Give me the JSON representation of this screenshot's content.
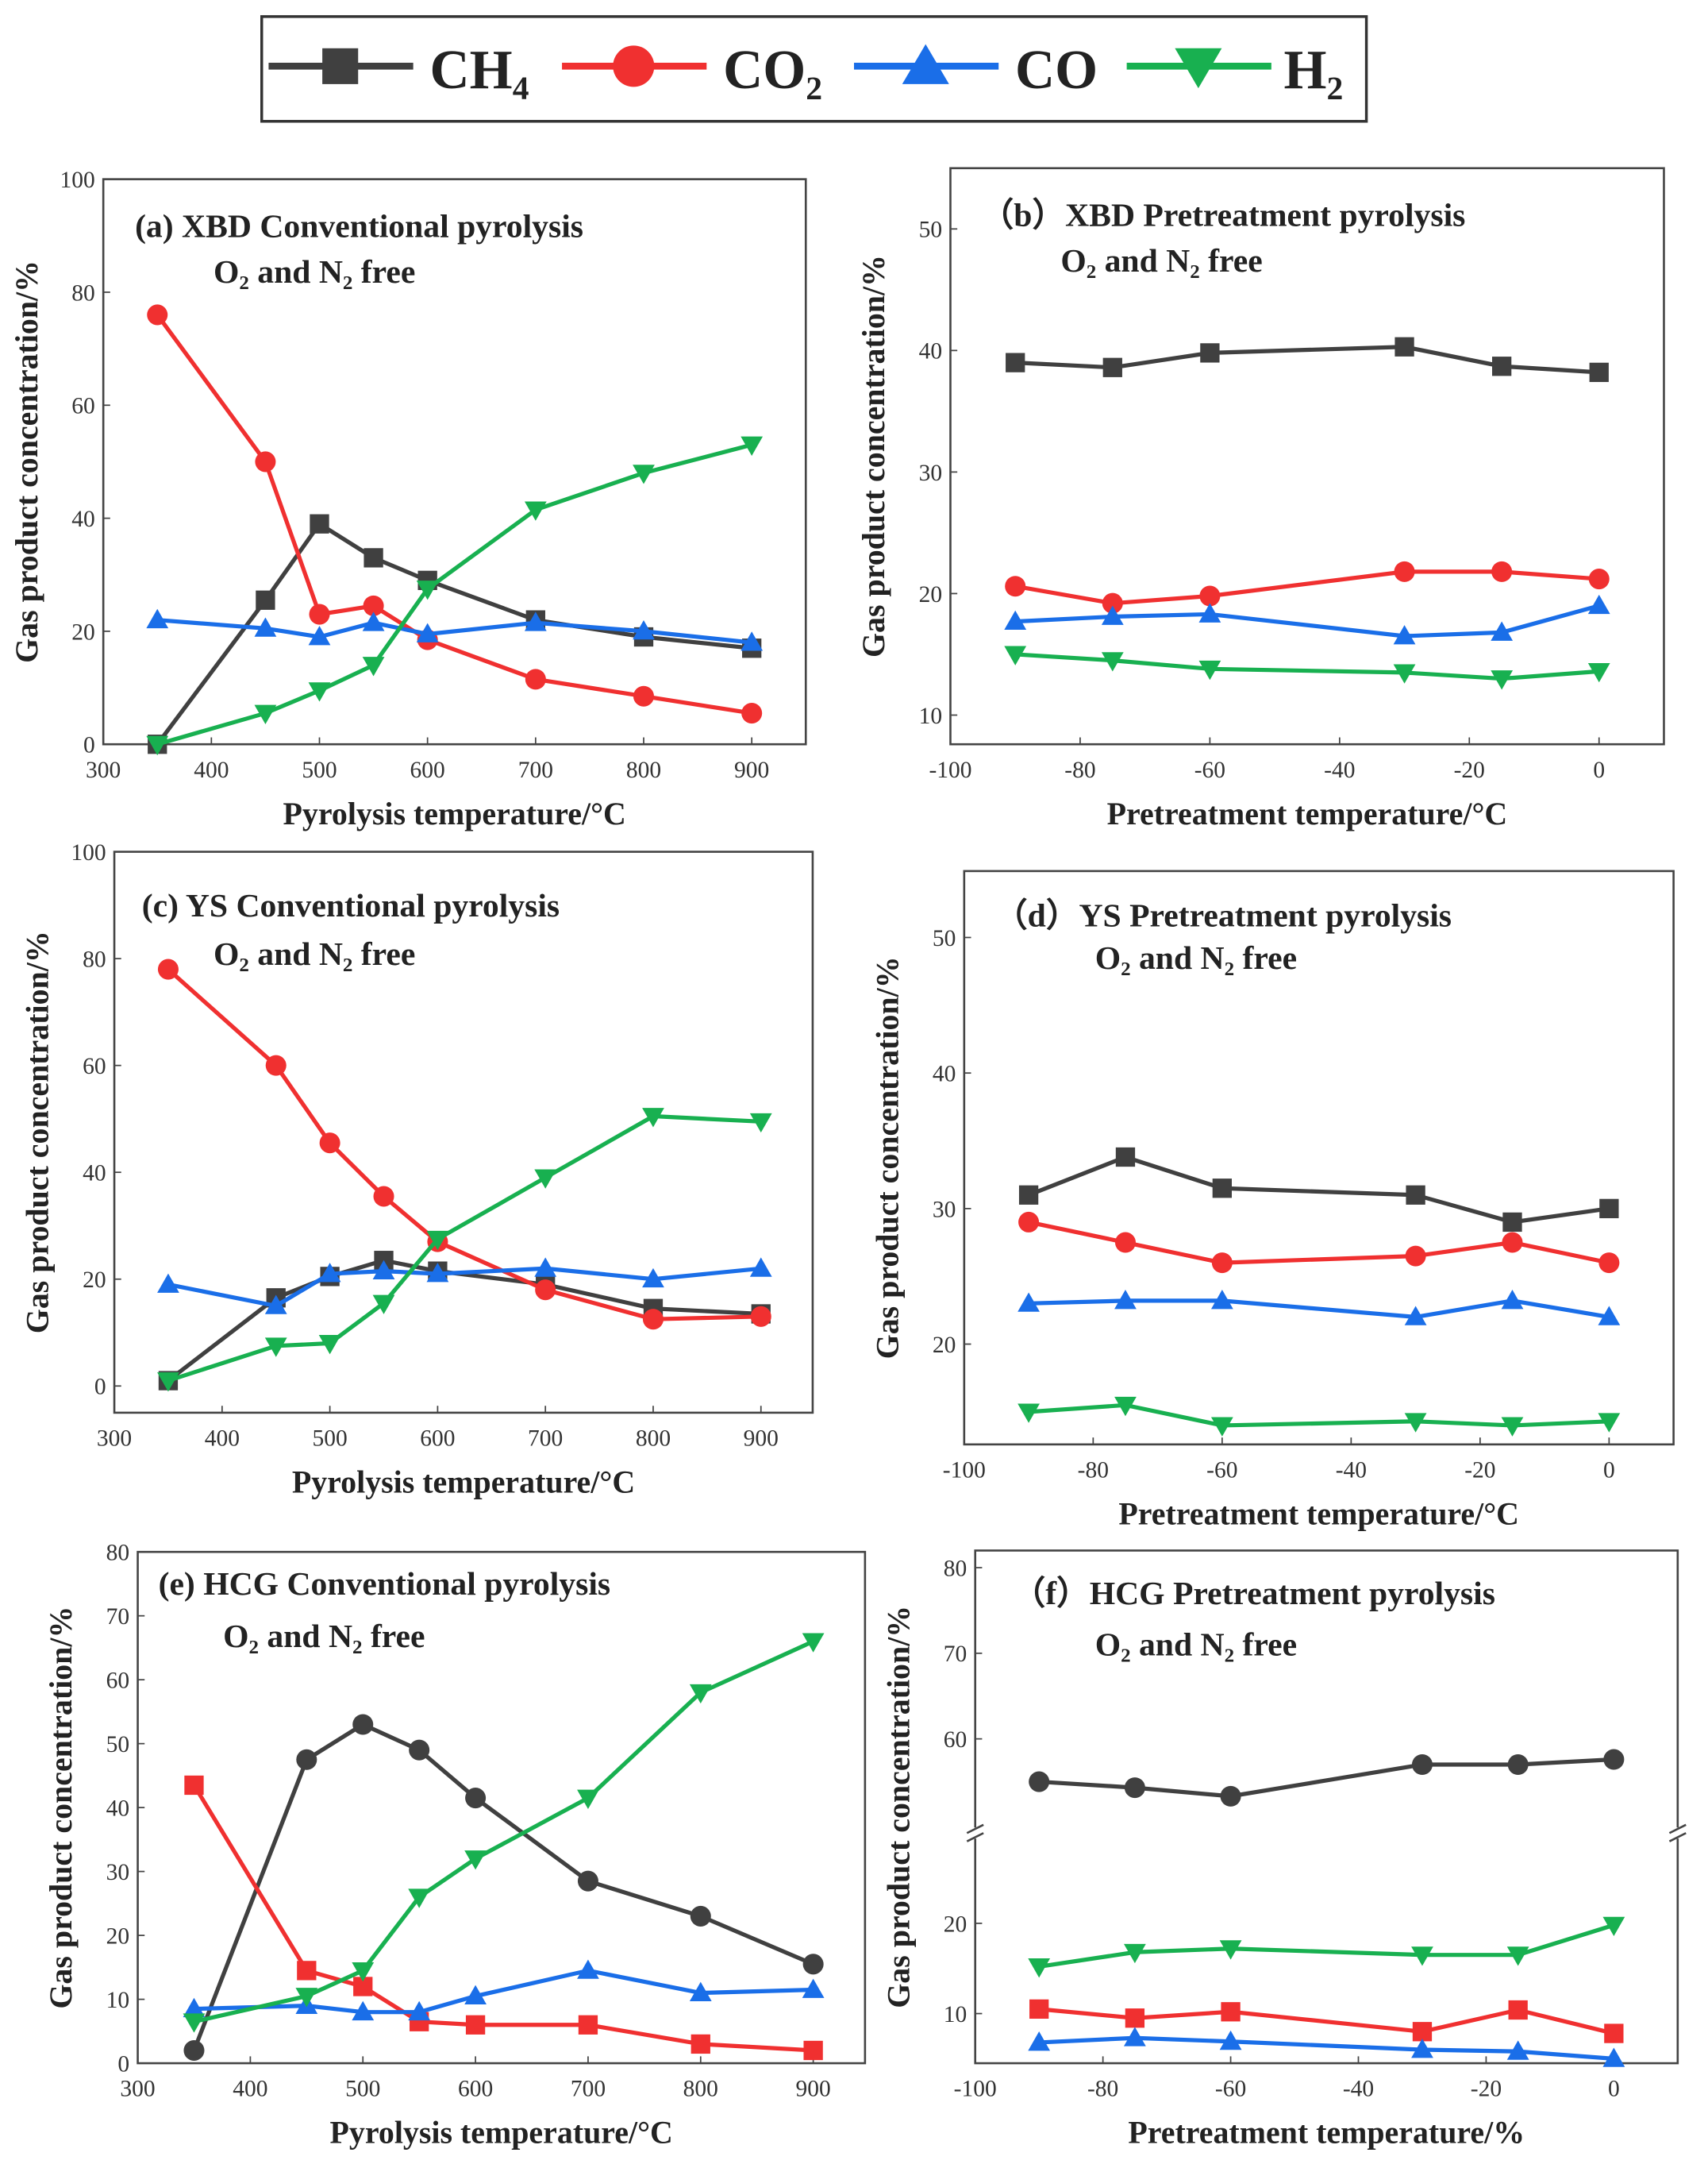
{
  "legend": [
    {
      "name": "CH₄",
      "color": "#404040",
      "marker": "square"
    },
    {
      "name": "CO₂",
      "color": "#f03030",
      "marker": "circle"
    },
    {
      "name": "CO",
      "color": "#1a6ee8",
      "marker": "triangle-up"
    },
    {
      "name": "H₂",
      "color": "#18b050",
      "marker": "triangle-down"
    }
  ],
  "chart_data": [
    {
      "type": "line",
      "title": "(a) XBD Conventional pyrolysis",
      "subtitle": "O₂ and N₂ free",
      "xlabel": "Pyrolysis temperature/°C",
      "ylabel": "Gas product concentration/%",
      "xlim": [
        300,
        950
      ],
      "ylim": [
        0,
        100
      ],
      "xticks": [
        300,
        400,
        500,
        600,
        700,
        800,
        900
      ],
      "yticks": [
        0,
        20,
        40,
        60,
        80,
        100
      ],
      "x": [
        350,
        450,
        500,
        550,
        600,
        700,
        800,
        900
      ],
      "series": [
        {
          "name": "CH₄",
          "color": "#404040",
          "marker": "square",
          "values": [
            0,
            25.5,
            39,
            33,
            29,
            22,
            19,
            17
          ]
        },
        {
          "name": "CO₂",
          "color": "#f03030",
          "marker": "circle",
          "values": [
            76,
            50,
            23,
            24.5,
            18.5,
            11.5,
            8.5,
            5.5
          ]
        },
        {
          "name": "CO",
          "color": "#1a6ee8",
          "marker": "triangle-up",
          "values": [
            22,
            20.5,
            19,
            21.5,
            19.5,
            21.5,
            20,
            18
          ]
        },
        {
          "name": "H₂",
          "color": "#18b050",
          "marker": "triangle-down",
          "values": [
            0,
            5.5,
            9.5,
            14,
            27.5,
            41.5,
            48,
            53
          ]
        }
      ]
    },
    {
      "type": "line",
      "title": "（b）XBD Pretreatment pyrolysis",
      "subtitle": "O₂ and N₂ free",
      "xlabel": "Pretreatment temperature/°C",
      "ylabel": "Gas product concentration/%",
      "xlim": [
        -100,
        10
      ],
      "ylim": [
        7.6,
        55
      ],
      "xticks": [
        -100,
        -80,
        -60,
        -40,
        -20,
        0
      ],
      "yticks": [
        10,
        20,
        30,
        40,
        50
      ],
      "x": [
        -90,
        -75,
        -60,
        -30,
        -15,
        0
      ],
      "series": [
        {
          "name": "CH₄",
          "color": "#404040",
          "marker": "square",
          "values": [
            39,
            38.6,
            39.8,
            40.3,
            38.7,
            38.2
          ]
        },
        {
          "name": "CO₂",
          "color": "#f03030",
          "marker": "circle",
          "values": [
            20.6,
            19.2,
            19.8,
            21.8,
            21.8,
            21.2
          ]
        },
        {
          "name": "CO",
          "color": "#1a6ee8",
          "marker": "triangle-up",
          "values": [
            17.7,
            18.1,
            18.3,
            16.5,
            16.8,
            19
          ]
        },
        {
          "name": "H₂",
          "color": "#18b050",
          "marker": "triangle-down",
          "values": [
            15,
            14.5,
            13.8,
            13.5,
            13,
            13.6
          ]
        }
      ]
    },
    {
      "type": "line",
      "title": "(c) YS Conventional pyrolysis",
      "subtitle": "O₂ and N₂ free",
      "xlabel": "Pyrolysis temperature/°C",
      "ylabel": "Gas product concentration/%",
      "xlim": [
        300,
        948
      ],
      "ylim": [
        -5,
        100
      ],
      "xticks": [
        300,
        400,
        500,
        600,
        700,
        800,
        900
      ],
      "yticks": [
        0,
        20,
        40,
        60,
        80,
        100
      ],
      "x": [
        350,
        450,
        500,
        550,
        600,
        700,
        800,
        900
      ],
      "series": [
        {
          "name": "CH₄",
          "color": "#404040",
          "marker": "square",
          "values": [
            1,
            16.5,
            20.5,
            23.5,
            21.5,
            19,
            14.5,
            13.5
          ]
        },
        {
          "name": "CO₂",
          "color": "#f03030",
          "marker": "circle",
          "values": [
            78,
            60,
            45.5,
            35.5,
            27,
            18,
            12.5,
            13
          ]
        },
        {
          "name": "CO",
          "color": "#1a6ee8",
          "marker": "triangle-up",
          "values": [
            19,
            15,
            21,
            21.5,
            21,
            22,
            20,
            22
          ]
        },
        {
          "name": "H₂",
          "color": "#18b050",
          "marker": "triangle-down",
          "values": [
            1,
            7.5,
            8,
            15.5,
            27.5,
            39,
            50.5,
            49.5
          ]
        }
      ]
    },
    {
      "type": "line",
      "title": "（d）YS Pretreatment pyrolysis",
      "subtitle": "O₂ and N₂ free",
      "xlabel": "Pretreatment temperature/°C",
      "ylabel": "Gas product concentration/%",
      "xlim": [
        -100,
        10
      ],
      "ylim": [
        12.6,
        54.9
      ],
      "xticks": [
        -100,
        -80,
        -60,
        -40,
        -20,
        0
      ],
      "yticks": [
        20,
        30,
        40,
        50
      ],
      "x": [
        -90,
        -75,
        -60,
        -30,
        -15,
        0
      ],
      "series": [
        {
          "name": "CH₄",
          "color": "#404040",
          "marker": "square",
          "values": [
            31,
            33.8,
            31.5,
            31,
            29,
            30
          ]
        },
        {
          "name": "CO₂",
          "color": "#f03030",
          "marker": "circle",
          "values": [
            29,
            27.5,
            26,
            26.5,
            27.5,
            26
          ]
        },
        {
          "name": "CO",
          "color": "#1a6ee8",
          "marker": "triangle-up",
          "values": [
            23,
            23.2,
            23.2,
            22,
            23.2,
            22
          ]
        },
        {
          "name": "H₂",
          "color": "#18b050",
          "marker": "triangle-down",
          "values": [
            15,
            15.5,
            14,
            14.3,
            14,
            14.3
          ]
        }
      ]
    },
    {
      "type": "line",
      "title": "(e) HCG Conventional pyrolysis",
      "subtitle": "O₂ and N₂ free",
      "xlabel": "Pyrolysis temperature/°C",
      "ylabel": "Gas product concentration/%",
      "xlim": [
        300,
        946
      ],
      "ylim": [
        0,
        80
      ],
      "xticks": [
        300,
        400,
        500,
        600,
        700,
        800,
        900
      ],
      "yticks": [
        0,
        10,
        20,
        30,
        40,
        50,
        60,
        70,
        80
      ],
      "x": [
        350,
        450,
        500,
        550,
        600,
        700,
        800,
        900
      ],
      "series": [
        {
          "name": "CH₄",
          "color": "#404040",
          "marker": "circle",
          "values": [
            2,
            47.5,
            53,
            49,
            41.5,
            28.5,
            23,
            15.5
          ]
        },
        {
          "name": "CO₂",
          "color": "#f03030",
          "marker": "square",
          "values": [
            43.5,
            14.5,
            12,
            6.5,
            6,
            6,
            3,
            2
          ]
        },
        {
          "name": "CO",
          "color": "#1a6ee8",
          "marker": "triangle-up",
          "values": [
            8.5,
            9,
            8,
            8,
            10.5,
            14.5,
            11,
            11.5
          ]
        },
        {
          "name": "H₂",
          "color": "#18b050",
          "marker": "triangle-down",
          "values": [
            6.5,
            10.5,
            14.5,
            26,
            32,
            41.5,
            58,
            66
          ]
        }
      ]
    },
    {
      "type": "line",
      "title": "（f）HCG Pretreatment pyrolysis",
      "subtitle": "O₂ and N₂ free",
      "xlabel": "Pretreatment temperature/%",
      "ylabel": "Gas product concentration/%",
      "xlim": [
        -100,
        10
      ],
      "ylim": [
        4.5,
        82
      ],
      "axis_break": [
        30,
        49
      ],
      "xticks": [
        -100,
        -80,
        -60,
        -40,
        -20,
        0
      ],
      "yticks": [
        10,
        20,
        60,
        70,
        80
      ],
      "x": [
        -90,
        -75,
        -60,
        -30,
        -15,
        0
      ],
      "series": [
        {
          "name": "CH₄",
          "color": "#404040",
          "marker": "circle",
          "values": [
            55,
            54.3,
            53.3,
            57,
            57,
            57.6
          ]
        },
        {
          "name": "CO₂",
          "color": "#f03030",
          "marker": "square",
          "values": [
            10.5,
            9.5,
            10.2,
            8,
            10.4,
            7.8
          ]
        },
        {
          "name": "CO",
          "color": "#1a6ee8",
          "marker": "triangle-up",
          "values": [
            6.8,
            7.3,
            6.9,
            6,
            5.8,
            5
          ]
        },
        {
          "name": "H₂",
          "color": "#18b050",
          "marker": "triangle-down",
          "values": [
            15.2,
            16.8,
            17.2,
            16.5,
            16.5,
            19.8
          ]
        }
      ]
    }
  ]
}
